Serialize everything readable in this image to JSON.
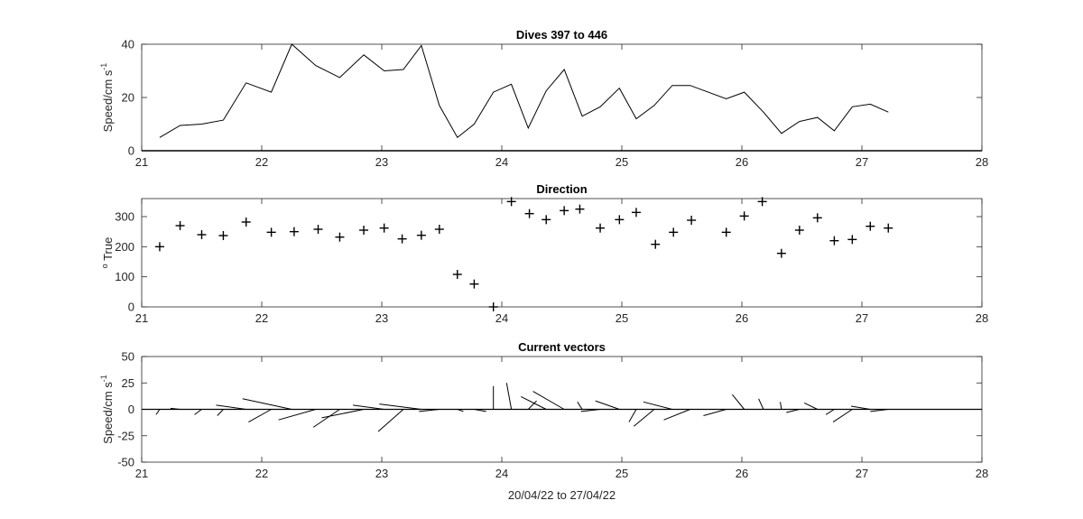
{
  "colors": {
    "axes": "#262626",
    "line": "#000000",
    "background": "#ffffff"
  },
  "chart_data": [
    {
      "type": "line",
      "title": "Dives 397 to 446",
      "ylabel": "Speed/cm s",
      "ylabel_superscript": "-1",
      "xlim": [
        21,
        28
      ],
      "ylim": [
        0,
        40
      ],
      "xticks": [
        "21",
        "22",
        "23",
        "24",
        "25",
        "26",
        "27",
        "28"
      ],
      "yticks": [
        "0",
        "20",
        "40"
      ],
      "grid": false,
      "x": [
        21.15,
        21.32,
        21.5,
        21.68,
        21.87,
        22.08,
        22.25,
        22.45,
        22.65,
        22.85,
        23.02,
        23.18,
        23.33,
        23.48,
        23.63,
        23.77,
        23.93,
        24.08,
        24.22,
        24.37,
        24.52,
        24.67,
        24.82,
        24.98,
        25.12,
        25.27,
        25.42,
        25.57,
        25.87,
        26.02,
        26.18,
        26.33,
        26.48,
        26.63,
        26.77,
        26.92,
        27.07,
        27.22
      ],
      "values": [
        5,
        9.5,
        10,
        11.5,
        25.5,
        22,
        41,
        32,
        27.5,
        36,
        30,
        30.5,
        39.5,
        17,
        5,
        10,
        22,
        25,
        8.5,
        22.5,
        30.5,
        13,
        16.5,
        23.5,
        12,
        17,
        24.5,
        24.5,
        19.5,
        22,
        14.5,
        6.5,
        11,
        12.5,
        7.5,
        16.5,
        17.5,
        14.5
      ]
    },
    {
      "type": "scatter",
      "title": "Direction",
      "ylabel": "True",
      "ylabel_prefix": "o",
      "marker": "+",
      "xlim": [
        21,
        28
      ],
      "ylim": [
        0,
        360
      ],
      "xticks": [
        "21",
        "22",
        "23",
        "24",
        "25",
        "26",
        "27",
        "28"
      ],
      "yticks": [
        "0",
        "100",
        "200",
        "300"
      ],
      "grid": false,
      "x": [
        21.15,
        21.32,
        21.5,
        21.68,
        21.87,
        22.08,
        22.27,
        22.47,
        22.65,
        22.85,
        23.02,
        23.17,
        23.33,
        23.48,
        23.63,
        23.77,
        23.93,
        24.08,
        24.23,
        24.37,
        24.52,
        24.65,
        24.82,
        24.98,
        25.12,
        25.28,
        25.43,
        25.58,
        25.87,
        26.02,
        26.17,
        26.33,
        26.48,
        26.63,
        26.77,
        26.92,
        27.07,
        27.22
      ],
      "values": [
        200,
        270,
        240,
        237,
        282,
        248,
        250,
        258,
        232,
        255,
        262,
        226,
        238,
        258,
        108,
        76,
        0,
        350,
        310,
        290,
        320,
        325,
        262,
        290,
        314,
        208,
        248,
        288,
        248,
        302,
        350,
        178,
        255,
        296,
        220,
        224,
        268,
        262
      ]
    },
    {
      "type": "line",
      "subtype": "vector",
      "title": "Current vectors",
      "ylabel": "Speed/cm s",
      "ylabel_superscript": "-1",
      "xlabel": "20/04/22 to 27/04/22",
      "xlim": [
        21,
        28
      ],
      "ylim": [
        -50,
        50
      ],
      "xticks": [
        "21",
        "22",
        "23",
        "24",
        "25",
        "26",
        "27",
        "28"
      ],
      "yticks": [
        "-50",
        "-25",
        "0",
        "25",
        "50"
      ],
      "grid": false,
      "baseline": 0,
      "x": [
        21.15,
        21.32,
        21.5,
        21.68,
        21.87,
        22.08,
        22.25,
        22.45,
        22.65,
        22.85,
        23.02,
        23.18,
        23.33,
        23.48,
        23.63,
        23.77,
        23.93,
        24.08,
        24.22,
        24.37,
        24.52,
        24.67,
        24.82,
        24.98,
        25.12,
        25.27,
        25.42,
        25.57,
        25.87,
        26.02,
        26.18,
        26.33,
        26.48,
        26.63,
        26.77,
        26.92,
        27.07,
        27.22
      ],
      "u": [
        -0.03,
        -0.08,
        -0.06,
        -0.05,
        -0.25,
        -0.19,
        -0.41,
        -0.31,
        -0.22,
        -0.35,
        -0.26,
        -0.21,
        -0.35,
        -0.17,
        0.05,
        0.1,
        0.0,
        -0.04,
        0.07,
        -0.21,
        -0.26,
        -0.04,
        -0.16,
        -0.2,
        -0.06,
        -0.17,
        -0.24,
        -0.22,
        -0.19,
        -0.1,
        -0.04,
        -0.01,
        -0.11,
        -0.11,
        -0.07,
        -0.16,
        -0.16,
        -0.15
      ],
      "v": [
        -5,
        1,
        -5,
        -6,
        4,
        -12,
        10,
        -10,
        -17,
        -8,
        4,
        -21,
        5,
        -2,
        -2,
        -2,
        22,
        25,
        8,
        12,
        17,
        7,
        -2,
        8,
        -12,
        -16,
        7,
        -10,
        -6,
        14,
        10,
        7,
        -3,
        6,
        -5,
        -12,
        3,
        -2
      ]
    }
  ]
}
